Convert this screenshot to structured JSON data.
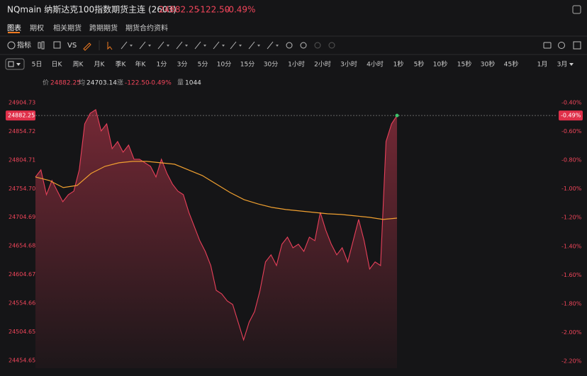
{
  "header": {
    "title": "NQmain 纳斯达克100指数期货主连 (2603)",
    "price": "24882.25",
    "change": "-122.50",
    "change_pct": "-0.49%"
  },
  "tabs": [
    "图表",
    "期权",
    "相关期货",
    "跨期期货",
    "期货合约资料"
  ],
  "toolbar": {
    "indicator": "指标",
    "compare": "VS"
  },
  "timeframes": [
    "5日",
    "日K",
    "周K",
    "月K",
    "季K",
    "年K",
    "1分",
    "3分",
    "5分",
    "10分",
    "15分",
    "30分",
    "1小时",
    "2小时",
    "3小时",
    "4小时",
    "1秒",
    "5秒",
    "10秒",
    "15秒",
    "30秒",
    "45秒",
    "1月",
    "3月"
  ],
  "info": {
    "price_label": "价",
    "price": "24882.25",
    "avg_label": "均",
    "avg": "24703.14",
    "change_label": "涨",
    "change": "-122.50",
    "change_pct": "-0.49%",
    "volume_label": "量",
    "volume": "1044"
  },
  "chart_data": {
    "type": "line",
    "ylim": [
      24441,
      24917
    ],
    "yticks": [
      24904.73,
      24854.72,
      24804.71,
      {
        "value": 24754.7,
        "label": "24754.70"
      },
      24704.69,
      24654.68,
      24604.67,
      24554.66,
      24504.65,
      24454.65
    ],
    "y2lim": [
      -2.25,
      -0.35
    ],
    "y2ticks": [
      {
        "value": -0.4,
        "label": "-0.40%"
      },
      {
        "value": -0.6,
        "label": "-0.60%"
      },
      {
        "value": -0.8,
        "label": "-0.80%"
      },
      {
        "value": -1.0,
        "label": "-1.00%"
      },
      {
        "value": -1.2,
        "label": "-1.20%"
      },
      {
        "value": -1.4,
        "label": "-1.40%"
      },
      {
        "value": -1.6,
        "label": "-1.60%"
      },
      {
        "value": -1.8,
        "label": "-1.80%"
      },
      {
        "value": -2.0,
        "label": "-2.00%"
      },
      {
        "value": -2.2,
        "label": "-2.20%"
      }
    ],
    "grid": false,
    "current_price": 24882.25,
    "current_pct_label": "-0.49%",
    "series": [
      {
        "name": "价",
        "color": "#e8405a",
        "values": [
          24774.9,
          24787.26,
          24743.98,
          24768.71,
          24750.17,
          24731.62,
          24743.98,
          24750.17,
          24787.26,
          24867.63,
          24886.18,
          24892.36,
          24855.27,
          24867.63,
          24824.36,
          24836.72,
          24818.17,
          24830.54,
          24805.81,
          24805.81,
          24799.63,
          24793.44,
          24774.9,
          24805.81,
          24781.08,
          24762.53,
          24750.17,
          24743.98,
          24713.07,
          24688.34,
          24663.61,
          24645.06,
          24620.33,
          24577.06,
          24570.87,
          24558.51,
          24552.33,
          24521.41,
          24490.5,
          24521.41,
          24539.96,
          24577.06,
          24626.52,
          24638.88,
          24620.33,
          24657.43,
          24669.79,
          24651.25,
          24657.43,
          24645.06,
          24669.79,
          24663.61,
          24713.07,
          24682.16,
          24657.43,
          24638.88,
          24651.25,
          24626.52,
          24663.61,
          24700.71,
          24663.61,
          24614.15,
          24626.52,
          24620.33,
          24836.72,
          24867.63,
          24882.25
        ]
      },
      {
        "name": "均",
        "color": "#f0a030",
        "values": [
          24774.9,
          24768.71,
          24756.35,
          24760.06,
          24781.08,
          24793.44,
          24799.63,
          24802.1,
          24802.1,
          24799.63,
          24797.15,
          24787.26,
          24777.37,
          24762.53,
          24747.69,
          24735.33,
          24727.91,
          24721.73,
          24718.02,
          24715.54,
          24713.07,
          24710.6,
          24709.36,
          24706.89,
          24704.42,
          24700.71,
          24703.14
        ]
      }
    ]
  }
}
